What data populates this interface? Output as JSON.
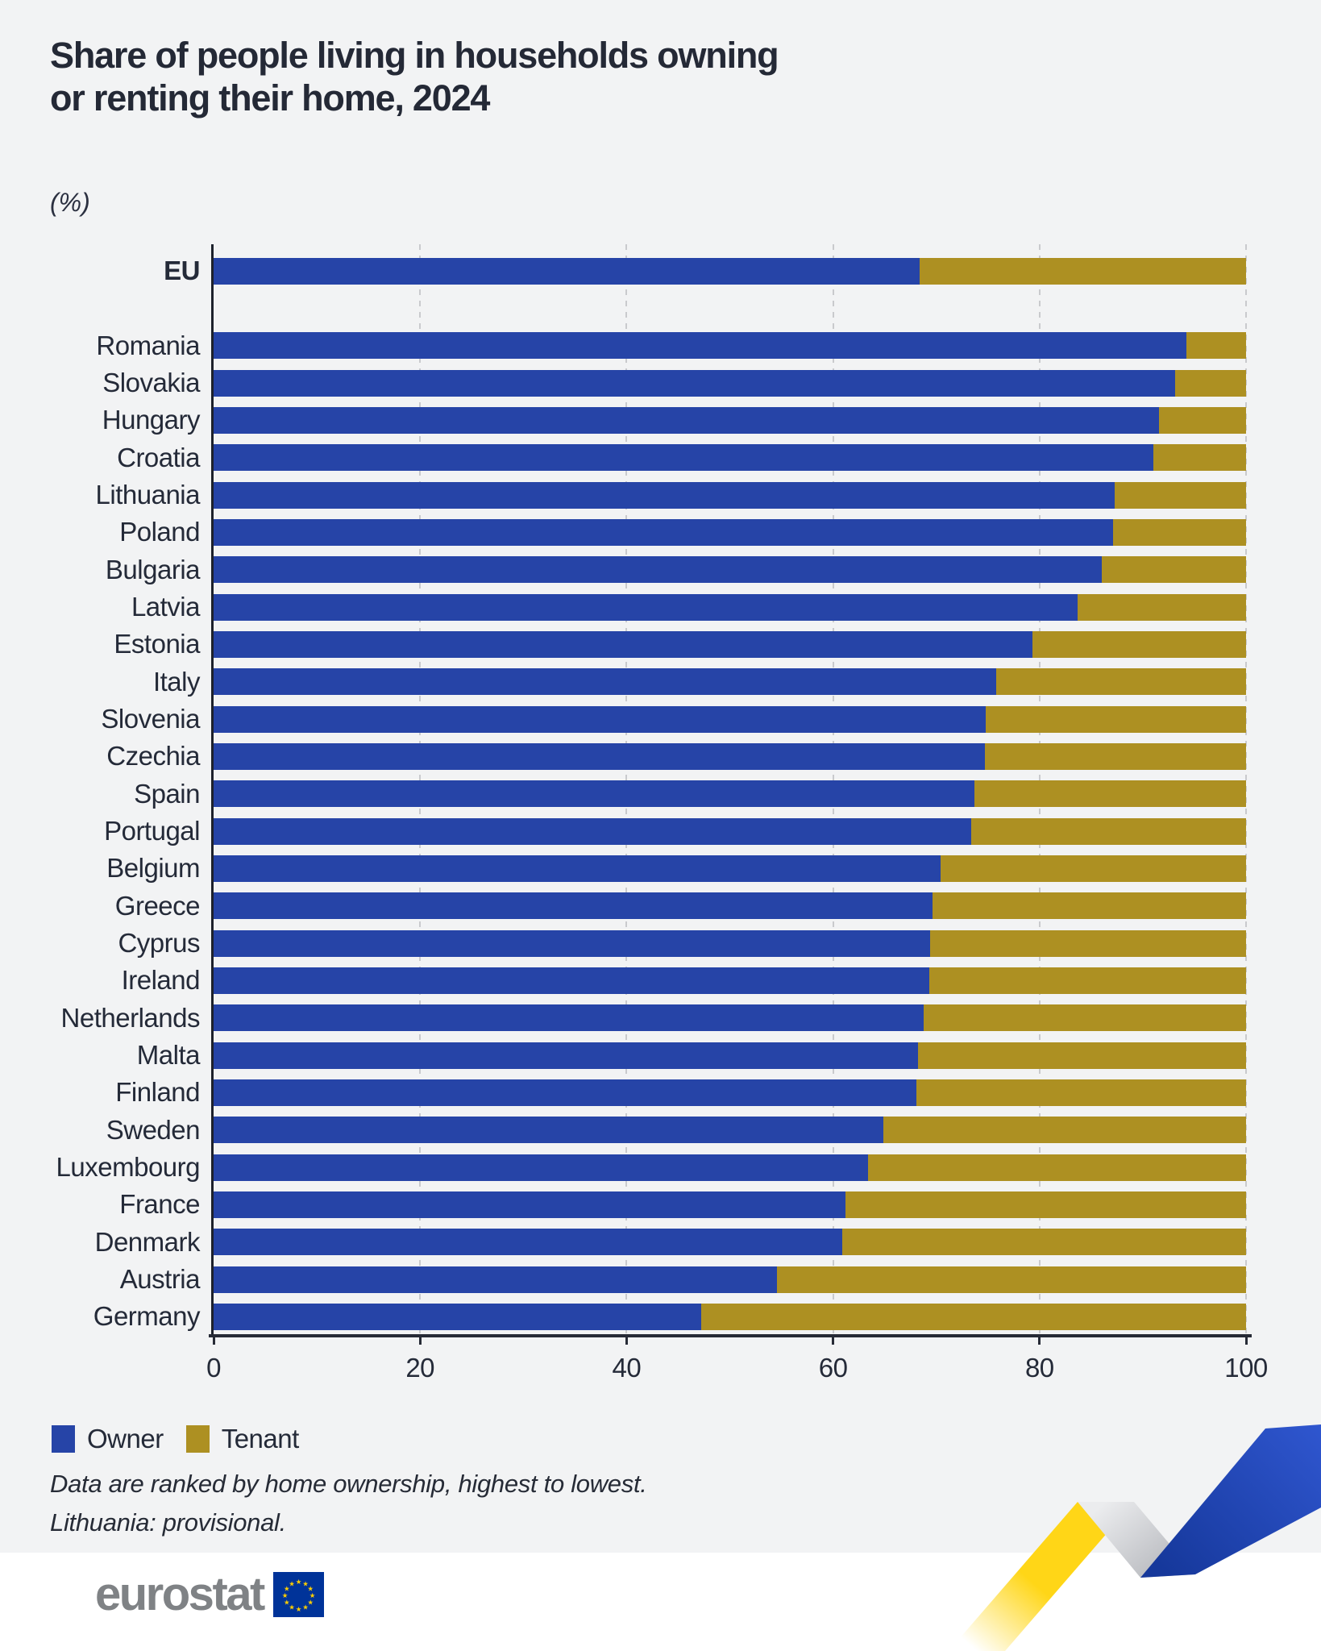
{
  "title": {
    "line1": "Share of people living in households owning",
    "line2": "or renting their home, 2024"
  },
  "subtitle": "(%)",
  "legend": {
    "owner_label": "Owner",
    "tenant_label": "Tenant"
  },
  "notes": [
    "Data are ranked by home ownership, highest to lowest.",
    "Lithuania: provisional."
  ],
  "logo_text": "eurostat",
  "colors": {
    "owner": "#2644a7",
    "tenant": "#ad9022",
    "axis": "#272b36",
    "grid": "#c9cacd",
    "background": "#f2f3f4",
    "title_text": "#242936",
    "ribbon_yellow": "#ffd617",
    "ribbon_blue": "#2450c8",
    "flag_blue": "#003399",
    "flag_star": "#ffcf00"
  },
  "chart_data": {
    "type": "bar",
    "stacked": true,
    "orientation": "horizontal",
    "title": "Share of people living in households owning or renting their home, 2024",
    "unit": "%",
    "xlabel": "",
    "ylabel": "",
    "x_axis": {
      "range": [
        0,
        100
      ],
      "ticks": [
        0,
        20,
        40,
        60,
        80,
        100
      ]
    },
    "grid": "vertical-dashed",
    "legend_position": "bottom-left",
    "categories": [
      "EU",
      "Romania",
      "Slovakia",
      "Hungary",
      "Croatia",
      "Lithuania",
      "Poland",
      "Bulgaria",
      "Latvia",
      "Estonia",
      "Italy",
      "Slovenia",
      "Czechia",
      "Spain",
      "Portugal",
      "Belgium",
      "Greece",
      "Cyprus",
      "Ireland",
      "Netherlands",
      "Malta",
      "Finland",
      "Sweden",
      "Luxembourg",
      "France",
      "Denmark",
      "Austria",
      "Germany"
    ],
    "series": [
      {
        "name": "Owner",
        "values": [
          68.4,
          94.2,
          93.1,
          91.6,
          91.0,
          87.3,
          87.1,
          86.0,
          83.7,
          79.3,
          75.8,
          74.8,
          74.7,
          73.7,
          73.4,
          70.4,
          69.6,
          69.4,
          69.3,
          68.8,
          68.2,
          68.1,
          64.9,
          63.4,
          61.2,
          60.9,
          54.6,
          47.2
        ]
      },
      {
        "name": "Tenant",
        "values": [
          31.6,
          5.8,
          6.9,
          8.4,
          9.0,
          12.7,
          12.9,
          14.0,
          16.3,
          20.7,
          24.2,
          25.2,
          25.3,
          26.3,
          26.6,
          29.6,
          30.4,
          30.6,
          30.7,
          31.2,
          31.8,
          31.9,
          35.1,
          36.6,
          38.8,
          39.1,
          45.4,
          52.8
        ]
      }
    ],
    "sort_note": "ranked by Owner share descending, EU shown separately on top"
  }
}
